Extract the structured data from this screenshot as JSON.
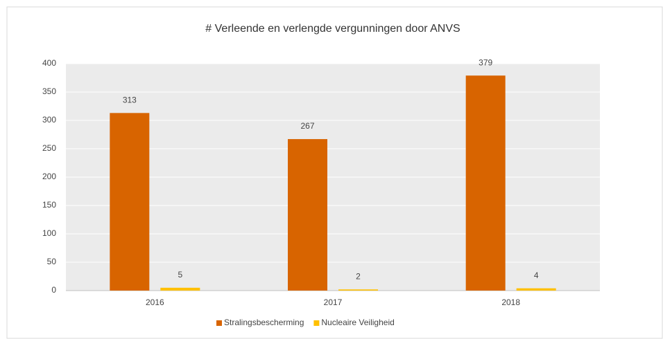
{
  "chart_data": {
    "type": "bar",
    "title": "# Verleende en verlengde vergunningen door ANVS",
    "categories": [
      "2016",
      "2017",
      "2018"
    ],
    "series": [
      {
        "name": "Stralingsbescherming",
        "color": "#d86400",
        "values": [
          313,
          267,
          379
        ]
      },
      {
        "name": "Nucleaire Veiligheid",
        "color": "#ffc000",
        "values": [
          5,
          2,
          4
        ]
      }
    ],
    "ylim": [
      0,
      400
    ],
    "yticks": [
      0,
      50,
      100,
      150,
      200,
      250,
      300,
      350,
      400
    ],
    "grid": true,
    "legend": "bottom"
  }
}
